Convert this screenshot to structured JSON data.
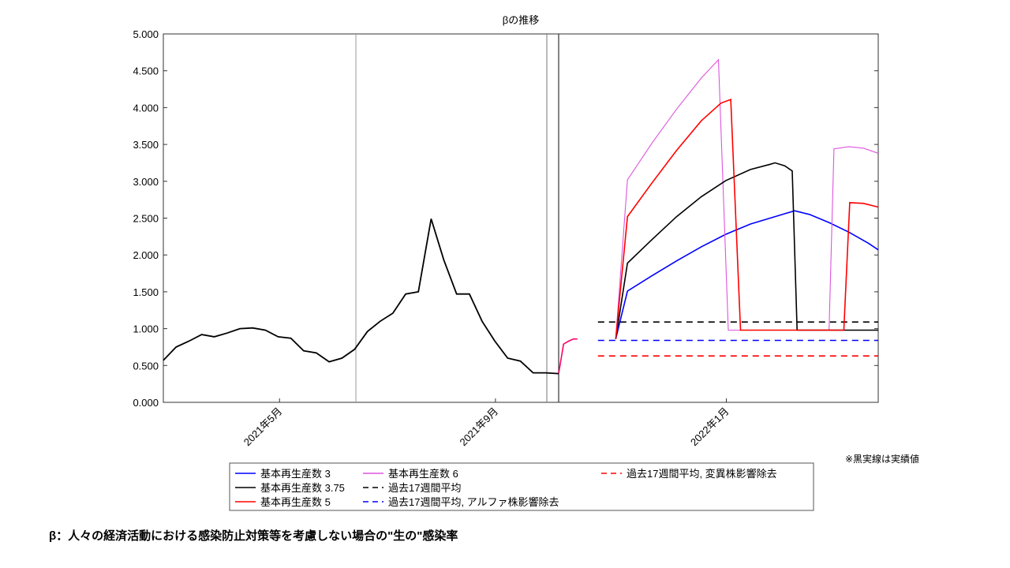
{
  "chart_data": {
    "type": "line",
    "title": "βの推移",
    "ylim": [
      0,
      5
    ],
    "yticks": [
      "0.000",
      "0.500",
      "1.000",
      "1.500",
      "2.000",
      "2.500",
      "3.000",
      "3.500",
      "4.000",
      "4.500",
      "5.000"
    ],
    "xtick_labels": [
      "2021年5月",
      "2021年9月",
      "2022年1月"
    ],
    "grid": false,
    "legend_position": "bottom",
    "series": [
      {
        "name": "基本再生産数 3",
        "color": "#0000ff",
        "points": [
          [
            42.6,
            0.86
          ],
          [
            45,
            1.51
          ],
          [
            50,
            1.72
          ],
          [
            55,
            1.92
          ],
          [
            60,
            2.11
          ],
          [
            65,
            2.28
          ],
          [
            70,
            2.42
          ],
          [
            75,
            2.52
          ],
          [
            77,
            2.56
          ],
          [
            79,
            2.6
          ],
          [
            82,
            2.55
          ],
          [
            86,
            2.44
          ],
          [
            90,
            2.31
          ],
          [
            94,
            2.16
          ],
          [
            96,
            2.07
          ]
        ]
      },
      {
        "name": "基本再生産数 6",
        "color": "#dd55dd",
        "points": [
          [
            42.6,
            0.86
          ],
          [
            45,
            3.02
          ],
          [
            50,
            3.52
          ],
          [
            55,
            3.98
          ],
          [
            60,
            4.4
          ],
          [
            63.5,
            4.65
          ],
          [
            65.5,
            0.98
          ],
          [
            86,
            0.98
          ],
          [
            87,
            3.44
          ],
          [
            90,
            3.47
          ],
          [
            93,
            3.45
          ],
          [
            96,
            3.38
          ]
        ]
      },
      {
        "name": "基本再生産数 3.75",
        "color": "#000000",
        "points": [
          [
            42.6,
            0.86
          ],
          [
            45,
            1.89
          ],
          [
            50,
            2.21
          ],
          [
            55,
            2.52
          ],
          [
            60,
            2.79
          ],
          [
            65,
            3.01
          ],
          [
            70,
            3.16
          ],
          [
            74,
            3.23
          ],
          [
            75,
            3.25
          ],
          [
            77,
            3.21
          ],
          [
            78.5,
            3.14
          ],
          [
            79.5,
            0.98
          ],
          [
            96,
            0.98
          ]
        ]
      },
      {
        "name": "基本再生産数 5",
        "color": "#ff0000",
        "points": [
          [
            42.6,
            0.86
          ],
          [
            45,
            2.52
          ],
          [
            50,
            2.98
          ],
          [
            55,
            3.42
          ],
          [
            60,
            3.82
          ],
          [
            64,
            4.06
          ],
          [
            66,
            4.11
          ],
          [
            68,
            0.98
          ],
          [
            89,
            0.98
          ],
          [
            90.2,
            2.71
          ],
          [
            93,
            2.7
          ],
          [
            96,
            2.65
          ]
        ]
      },
      {
        "name": "過去17週間平均",
        "color": "#000000",
        "dashed": true,
        "points": [
          [
            39,
            1.09
          ],
          [
            96,
            1.09
          ]
        ]
      },
      {
        "name": "過去17週間平均, アルファ株影響除去",
        "color": "#0000ff",
        "dashed": true,
        "points": [
          [
            39,
            0.84
          ],
          [
            96,
            0.84
          ]
        ]
      },
      {
        "name": "過去17週間平均, 変異株影響除去",
        "color": "#ff0000",
        "dashed": true,
        "points": [
          [
            39,
            0.63
          ],
          [
            96,
            0.63
          ]
        ]
      }
    ],
    "actual": {
      "color": "#000000",
      "points": [
        [
          0,
          0.57
        ],
        [
          1,
          0.75
        ],
        [
          2,
          0.83
        ],
        [
          3,
          0.92
        ],
        [
          4,
          0.89
        ],
        [
          5,
          0.94
        ],
        [
          6,
          1.0
        ],
        [
          7,
          1.01
        ],
        [
          8,
          0.98
        ],
        [
          9,
          0.89
        ],
        [
          10,
          0.87
        ],
        [
          11,
          0.7
        ],
        [
          12,
          0.67
        ],
        [
          13,
          0.55
        ],
        [
          14,
          0.6
        ],
        [
          15,
          0.72
        ],
        [
          16,
          0.96
        ],
        [
          17,
          1.1
        ],
        [
          18,
          1.21
        ],
        [
          19,
          1.47
        ],
        [
          20,
          1.5
        ],
        [
          21,
          2.49
        ],
        [
          22,
          1.93
        ],
        [
          23,
          1.47
        ],
        [
          24,
          1.47
        ],
        [
          25,
          1.1
        ],
        [
          26,
          0.83
        ],
        [
          27,
          0.6
        ],
        [
          28,
          0.56
        ],
        [
          29,
          0.4
        ],
        [
          30,
          0.4
        ],
        [
          31,
          0.39
        ]
      ]
    },
    "projection_link": {
      "color": "#ff0066",
      "points": [
        [
          31,
          0.39
        ],
        [
          32,
          0.79
        ],
        [
          33,
          0.83
        ],
        [
          34,
          0.86
        ],
        [
          34.8,
          0.86
        ]
      ]
    },
    "x_domain": [
      0,
      96
    ]
  },
  "note": "※黒実線は実績値",
  "footnote": "β：人々の経済活動における感染防止対策等を考慮しない場合の\"生の\"感染率"
}
